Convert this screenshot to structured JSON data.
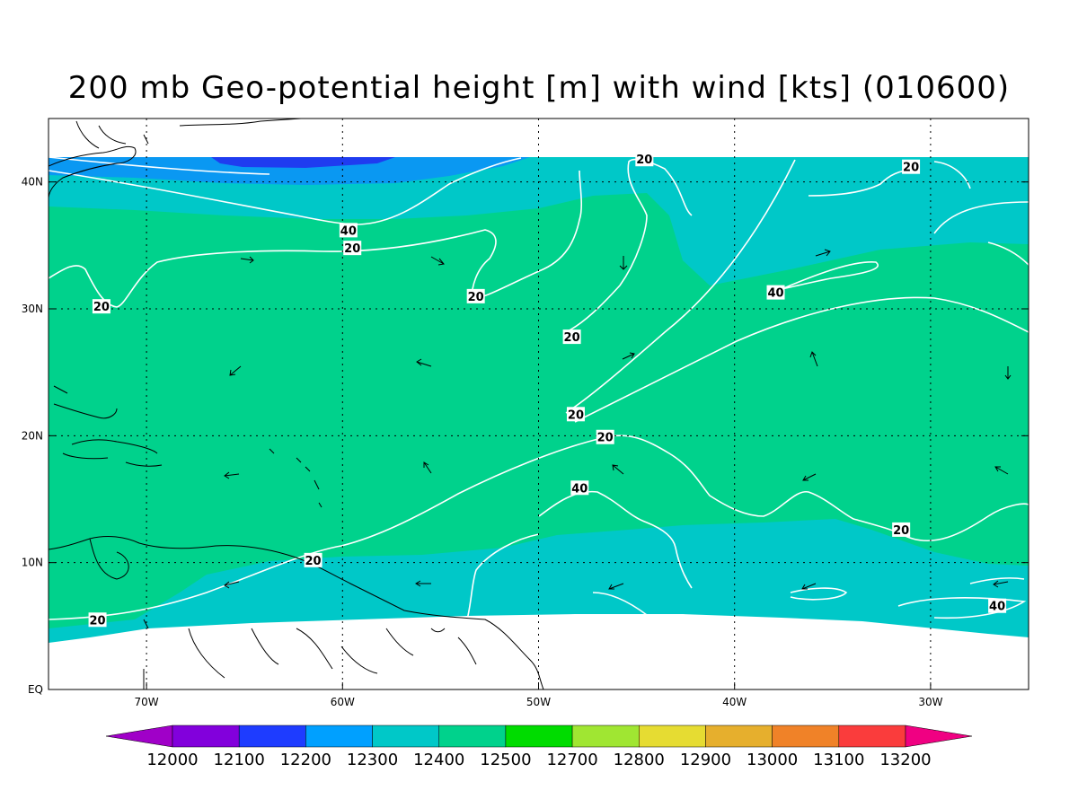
{
  "title": "200 mb Geo-potential height [m] with wind [kts] (010600)",
  "map": {
    "lon_range": [
      -75,
      -25
    ],
    "lat_range": [
      0,
      45
    ],
    "x_ticks": [
      {
        "lon": -70,
        "label": "70W"
      },
      {
        "lon": -60,
        "label": "60W"
      },
      {
        "lon": -50,
        "label": "50W"
      },
      {
        "lon": -40,
        "label": "40W"
      },
      {
        "lon": -30,
        "label": "30W"
      }
    ],
    "y_ticks": [
      {
        "lat": 0,
        "label": "EQ"
      },
      {
        "lat": 10,
        "label": "10N"
      },
      {
        "lat": 20,
        "label": "20N"
      },
      {
        "lat": 30,
        "label": "30N"
      },
      {
        "lat": 40,
        "label": "40N"
      }
    ],
    "gridlines": true,
    "colors": {
      "c12100": "#1f3cf0",
      "c12200": "#0a98f2",
      "c12300": "#00c8c8",
      "c12400": "#00d28c",
      "contour": "#ffffff",
      "coast": "#000000"
    },
    "contour_labels": [
      {
        "lon": -44.6,
        "lat": 41.8,
        "text": "20"
      },
      {
        "lon": -31.0,
        "lat": 41.2,
        "text": "20"
      },
      {
        "lon": -59.7,
        "lat": 36.2,
        "text": "40"
      },
      {
        "lon": -59.5,
        "lat": 34.8,
        "text": "20"
      },
      {
        "lon": -72.3,
        "lat": 30.2,
        "text": "20"
      },
      {
        "lon": -53.2,
        "lat": 31.0,
        "text": "20"
      },
      {
        "lon": -37.9,
        "lat": 31.3,
        "text": "40"
      },
      {
        "lon": -48.3,
        "lat": 27.8,
        "text": "20"
      },
      {
        "lon": -48.1,
        "lat": 21.7,
        "text": "20"
      },
      {
        "lon": -46.6,
        "lat": 19.9,
        "text": "20"
      },
      {
        "lon": -47.9,
        "lat": 15.9,
        "text": "40"
      },
      {
        "lon": -31.5,
        "lat": 12.6,
        "text": "20"
      },
      {
        "lon": -61.5,
        "lat": 10.2,
        "text": "20"
      },
      {
        "lon": -72.5,
        "lat": 5.5,
        "text": "20"
      },
      {
        "lon": -26.6,
        "lat": 6.6,
        "text": "40"
      }
    ]
  },
  "colorbar": {
    "colors": [
      "#a000c8",
      "#8200dc",
      "#1e3cff",
      "#00a0ff",
      "#00c8c8",
      "#00d28c",
      "#00dc00",
      "#a0e632",
      "#e6dc32",
      "#e6af2d",
      "#f08228",
      "#fa3c3c",
      "#f00082"
    ],
    "labels": [
      "12000",
      "12100",
      "12200",
      "12300",
      "12400",
      "12500",
      "12700",
      "12800",
      "12900",
      "13000",
      "13100",
      "13200"
    ]
  }
}
